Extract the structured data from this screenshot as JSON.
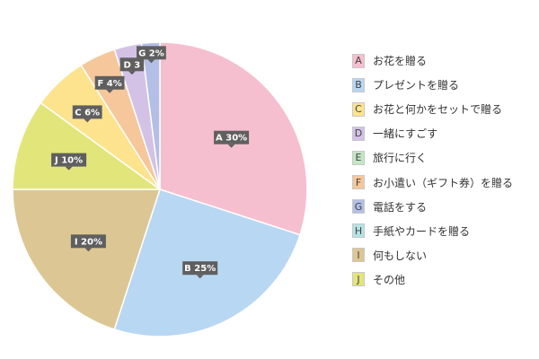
{
  "chart_data": {
    "type": "pie",
    "start_angle_deg": 0,
    "direction": "clockwise",
    "slices": [
      {
        "letter": "A",
        "label": "お花を贈る",
        "value": 30,
        "tag": "A 30%",
        "color": "#f5bfd0"
      },
      {
        "letter": "B",
        "label": "プレゼントを贈る",
        "value": 25,
        "tag": "B 25%",
        "color": "#b8d7f2"
      },
      {
        "letter": "I",
        "label": "何もしない",
        "value": 20,
        "tag": "I 20%",
        "color": "#dcc794"
      },
      {
        "letter": "J",
        "label": "その他",
        "value": 10,
        "tag": "J 10%",
        "color": "#e2e67a"
      },
      {
        "letter": "C",
        "label": "お花と何かをセットで贈る",
        "value": 6,
        "tag": "C 6%",
        "color": "#fde38e"
      },
      {
        "letter": "F",
        "label": "お小遣い（ギフト券）を贈る",
        "value": 4,
        "tag": "F 4%",
        "color": "#f5c79a"
      },
      {
        "letter": "D",
        "label": "一緒にすごす",
        "value": 3,
        "tag": "D 3",
        "color": "#d3c2e6"
      },
      {
        "letter": "G",
        "label": "電話をする",
        "value": 2,
        "tag": "G 2%",
        "color": "#b3bfe6"
      }
    ],
    "legend_position": "right",
    "legend": [
      {
        "letter": "A",
        "label": "お花を贈る",
        "color": "#f5bfd0"
      },
      {
        "letter": "B",
        "label": "プレゼントを贈る",
        "color": "#b8d7f2"
      },
      {
        "letter": "C",
        "label": "お花と何かをセットで贈る",
        "color": "#fde38e"
      },
      {
        "letter": "D",
        "label": "一緒にすごす",
        "color": "#d3c2e6"
      },
      {
        "letter": "E",
        "label": "旅行に行く",
        "color": "#c3e6c3"
      },
      {
        "letter": "F",
        "label": "お小遣い（ギフト券）を贈る",
        "color": "#f5c79a"
      },
      {
        "letter": "G",
        "label": "電話をする",
        "color": "#b3bfe6"
      },
      {
        "letter": "H",
        "label": "手紙やカードを贈る",
        "color": "#b5e3e3"
      },
      {
        "letter": "I",
        "label": "何もしない",
        "color": "#dcc794"
      },
      {
        "letter": "J",
        "label": "その他",
        "color": "#e2e67a"
      }
    ]
  }
}
